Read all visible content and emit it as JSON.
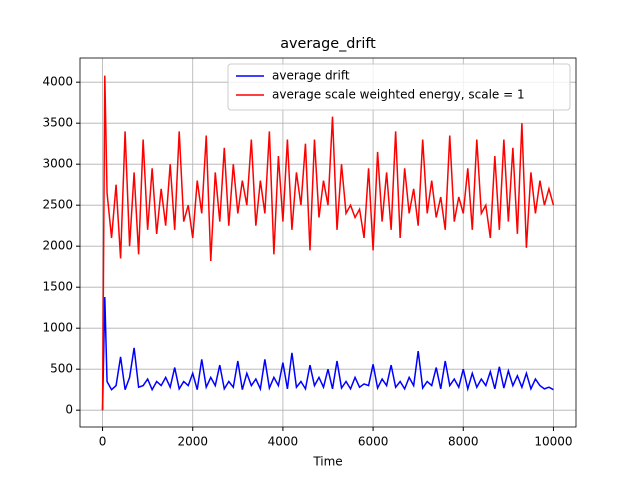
{
  "chart_data": {
    "type": "line",
    "title": "average_drift",
    "xlabel": "Time",
    "x": [
      0,
      50,
      100,
      200,
      300,
      400,
      500,
      600,
      700,
      800,
      900,
      1000,
      1100,
      1200,
      1300,
      1400,
      1500,
      1600,
      1700,
      1800,
      1900,
      2000,
      2100,
      2200,
      2300,
      2400,
      2500,
      2600,
      2700,
      2800,
      2900,
      3000,
      3100,
      3200,
      3300,
      3400,
      3500,
      3600,
      3700,
      3800,
      3900,
      4000,
      4100,
      4200,
      4300,
      4400,
      4500,
      4600,
      4700,
      4800,
      4900,
      5000,
      5100,
      5200,
      5300,
      5400,
      5500,
      5600,
      5700,
      5800,
      5900,
      6000,
      6100,
      6200,
      6300,
      6400,
      6500,
      6600,
      6700,
      6800,
      6900,
      7000,
      7100,
      7200,
      7300,
      7400,
      7500,
      7600,
      7700,
      7800,
      7900,
      8000,
      8100,
      8200,
      8300,
      8400,
      8500,
      8600,
      8700,
      8800,
      8900,
      9000,
      9100,
      9200,
      9300,
      9400,
      9500,
      9600,
      9700,
      9800,
      9900,
      10000
    ],
    "series": [
      {
        "name": "average drift",
        "color": "#0000ff",
        "values": [
          0,
          1380,
          350,
          250,
          300,
          650,
          250,
          400,
          760,
          280,
          300,
          380,
          250,
          350,
          300,
          400,
          280,
          520,
          260,
          350,
          300,
          450,
          250,
          620,
          280,
          400,
          300,
          550,
          260,
          350,
          280,
          600,
          250,
          450,
          300,
          380,
          260,
          620,
          270,
          400,
          300,
          580,
          260,
          700,
          280,
          350,
          260,
          550,
          300,
          400,
          280,
          500,
          260,
          600,
          270,
          350,
          260,
          400,
          280,
          320,
          300,
          560,
          270,
          380,
          300,
          550,
          280,
          350,
          260,
          400,
          300,
          720,
          270,
          350,
          300,
          520,
          260,
          600,
          300,
          380,
          280,
          500,
          260,
          450,
          280,
          380,
          300,
          470,
          260,
          530,
          270,
          480,
          300,
          420,
          280,
          450,
          260,
          380,
          300,
          260,
          280,
          250
        ]
      },
      {
        "name": "average scale weighted energy, scale = 1",
        "color": "#ff0000",
        "values": [
          0,
          4080,
          2650,
          2100,
          2750,
          1850,
          3400,
          2000,
          2900,
          1900,
          3300,
          2200,
          2950,
          2150,
          2700,
          2250,
          3000,
          2200,
          3400,
          2300,
          2500,
          2100,
          2800,
          2400,
          3350,
          1820,
          2900,
          2300,
          3200,
          2250,
          3000,
          2400,
          2800,
          2500,
          3300,
          2250,
          2800,
          2400,
          3400,
          1900,
          3100,
          2300,
          3300,
          2200,
          2900,
          2500,
          3250,
          1950,
          3300,
          2350,
          2800,
          2500,
          3580,
          2200,
          3000,
          2400,
          2500,
          2350,
          2450,
          2100,
          2950,
          1950,
          3150,
          2300,
          2900,
          2200,
          3400,
          2100,
          2950,
          2400,
          2700,
          2250,
          3300,
          2400,
          2800,
          2350,
          2600,
          2200,
          3350,
          2300,
          2600,
          2400,
          2950,
          2200,
          3300,
          2400,
          2500,
          2100,
          3100,
          2200,
          3300,
          2300,
          3200,
          2150,
          3500,
          1980,
          2900,
          2400,
          2800,
          2500,
          2700,
          2500
        ]
      }
    ],
    "xlim": [
      -500,
      10500
    ],
    "xticks": [
      0,
      2000,
      4000,
      6000,
      8000,
      10000
    ],
    "ylim": [
      -205,
      4295
    ],
    "yticks": [
      0,
      500,
      1000,
      1500,
      2000,
      2500,
      3000,
      3500,
      4000
    ],
    "grid": true,
    "legend": "upper right"
  }
}
